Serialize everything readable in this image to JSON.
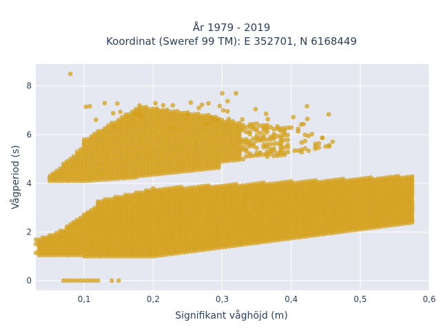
{
  "chart_data": {
    "type": "scatter",
    "title": "År 1979 - 2019",
    "subtitle": "Koordinat (Sweref 99 TM): E 352701, N 6168449",
    "xlabel": "Signifikant våghöjd (m)",
    "ylabel": "Vågperiod (s)",
    "xlim": [
      0.03,
      0.6
    ],
    "ylim": [
      -0.4,
      8.9
    ],
    "x_ticks": [
      0.1,
      0.2,
      0.3,
      0.4,
      0.5,
      0.6
    ],
    "x_tick_labels": [
      "0,1",
      "0,2",
      "0,3",
      "0,4",
      "0,5",
      "0,6"
    ],
    "y_ticks": [
      0,
      2,
      4,
      6,
      8
    ],
    "y_tick_labels": [
      "0",
      "2",
      "4",
      "6",
      "8"
    ],
    "grid": true,
    "marker_color": "#d4a017",
    "plot_background": "#e5e8f0",
    "clusters": {
      "zero_period": {
        "x_range": [
          0.07,
          0.15
        ],
        "y": 0
      },
      "upper_band": {
        "x_range": [
          0.05,
          0.47
        ],
        "y_min_at_start": 4.1,
        "y_max_peak": 7.3
      },
      "lower_band": {
        "x_range": [
          0.03,
          0.58
        ],
        "y_min_at_start": 1.1,
        "y_max_at_end": 4.4
      }
    },
    "outliers": [
      {
        "x": 0.08,
        "y": 8.5
      },
      {
        "x": 0.3,
        "y": 7.7
      },
      {
        "x": 0.32,
        "y": 7.7
      }
    ]
  }
}
